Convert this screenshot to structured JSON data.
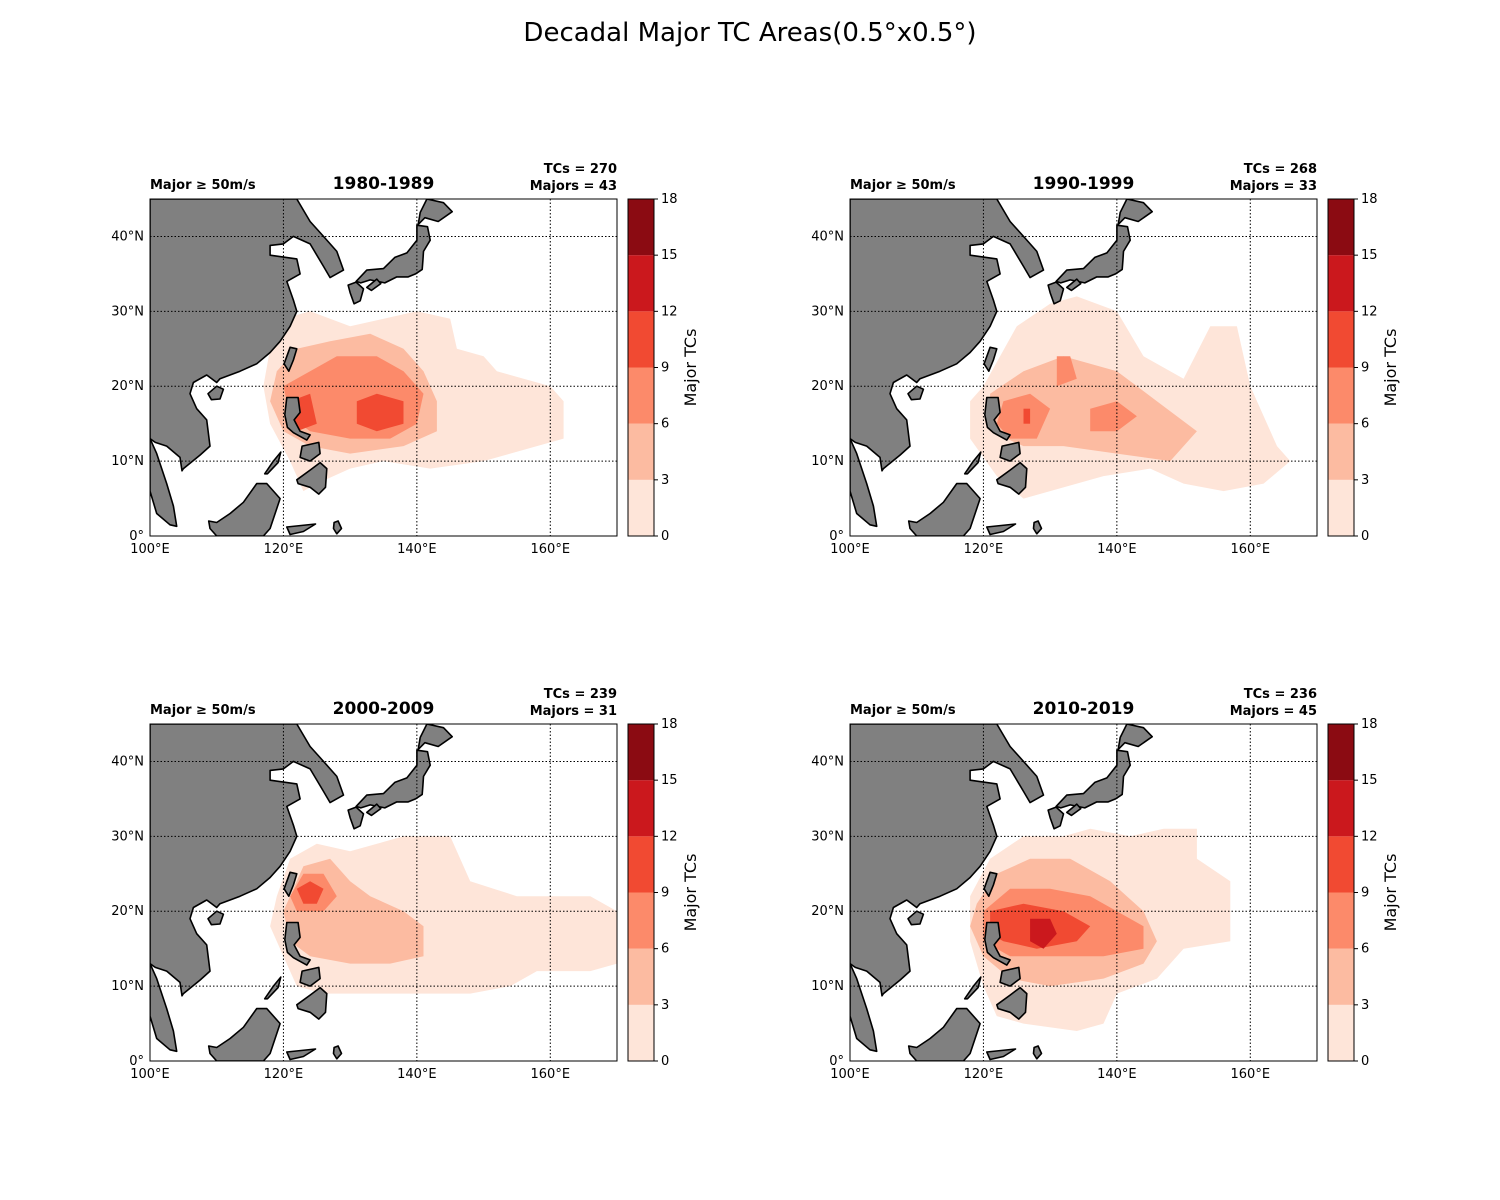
{
  "title": "Decadal Major TC Areas(0.5°x0.5°)",
  "colors": {
    "land": "#808080",
    "levels": [
      "#fee5d9",
      "#fcbba1",
      "#fc8a6a",
      "#f14a32",
      "#cb181d",
      "#8b0b12"
    ]
  },
  "chart_data": [
    {
      "type": "heatmap",
      "title": "1980-1989",
      "threshold_label": "Major ≥ 50m/s",
      "tcs_label": "TCs = 270",
      "majors_label": "Majors = 43",
      "xlim": [
        100,
        170
      ],
      "ylim": [
        0,
        45
      ],
      "xticks": [
        "100°E",
        "120°E",
        "140°E",
        "160°E"
      ],
      "yticks": [
        "0°",
        "10°N",
        "20°N",
        "30°N",
        "40°N"
      ],
      "colorbar": {
        "label": "Major  TCs",
        "ticks": [
          "0",
          "3",
          "6",
          "9",
          "12",
          "15",
          "18"
        ]
      },
      "regions": [
        {
          "level": 1,
          "pts": [
            [
              118,
              25
            ],
            [
              120,
              29
            ],
            [
              124,
              30
            ],
            [
              130,
              28
            ],
            [
              140,
              30
            ],
            [
              145,
              29
            ],
            [
              146,
              25
            ],
            [
              150,
              24
            ],
            [
              152,
              22
            ],
            [
              156,
              21
            ],
            [
              160,
              20
            ],
            [
              162,
              18
            ],
            [
              162,
              13
            ],
            [
              158,
              12
            ],
            [
              150,
              10
            ],
            [
              142,
              9
            ],
            [
              135,
              10
            ],
            [
              130,
              9
            ],
            [
              125,
              7
            ],
            [
              123,
              6
            ],
            [
              121,
              10
            ],
            [
              118,
              15
            ],
            [
              117,
              20
            ]
          ]
        },
        {
          "level": 2,
          "pts": [
            [
              119,
              22
            ],
            [
              122,
              25
            ],
            [
              127,
              26
            ],
            [
              133,
              27
            ],
            [
              138,
              25
            ],
            [
              141,
              22
            ],
            [
              143,
              18
            ],
            [
              143,
              14
            ],
            [
              138,
              12
            ],
            [
              130,
              11
            ],
            [
              124,
              12
            ],
            [
              120,
              14
            ],
            [
              118,
              18
            ]
          ]
        },
        {
          "level": 3,
          "pts": [
            [
              120,
              20
            ],
            [
              124,
              22
            ],
            [
              128,
              24
            ],
            [
              134,
              24
            ],
            [
              138,
              22
            ],
            [
              141,
              19
            ],
            [
              140,
              15
            ],
            [
              136,
              13
            ],
            [
              130,
              13
            ],
            [
              124,
              14
            ],
            [
              121,
              16
            ]
          ]
        },
        {
          "level": 4,
          "pts": [
            [
              121,
              18
            ],
            [
              124,
              19
            ],
            [
              125,
              15
            ],
            [
              122,
              14
            ]
          ]
        },
        {
          "level": 4,
          "pts": [
            [
              131,
              18
            ],
            [
              134,
              19
            ],
            [
              138,
              18
            ],
            [
              138,
              15
            ],
            [
              134,
              14
            ],
            [
              131,
              15
            ]
          ]
        }
      ]
    },
    {
      "type": "heatmap",
      "title": "1990-1999",
      "threshold_label": "Major ≥ 50m/s",
      "tcs_label": "TCs = 268",
      "majors_label": "Majors = 33",
      "xlim": [
        100,
        170
      ],
      "ylim": [
        0,
        45
      ],
      "xticks": [
        "100°E",
        "120°E",
        "140°E",
        "160°E"
      ],
      "yticks": [
        "0°",
        "10°N",
        "20°N",
        "30°N",
        "40°N"
      ],
      "colorbar": {
        "label": "Major  TCs",
        "ticks": [
          "0",
          "3",
          "6",
          "9",
          "12",
          "15",
          "18"
        ]
      },
      "regions": [
        {
          "level": 1,
          "pts": [
            [
              120,
              20
            ],
            [
              125,
              28
            ],
            [
              130,
              31
            ],
            [
              134,
              32
            ],
            [
              140,
              30
            ],
            [
              144,
              24
            ],
            [
              150,
              21
            ],
            [
              154,
              28
            ],
            [
              158,
              28
            ],
            [
              160,
              20
            ],
            [
              164,
              12
            ],
            [
              166,
              10
            ],
            [
              162,
              7
            ],
            [
              156,
              6
            ],
            [
              150,
              7
            ],
            [
              145,
              9
            ],
            [
              138,
              8
            ],
            [
              130,
              6
            ],
            [
              126,
              5
            ],
            [
              122,
              8
            ],
            [
              118,
              13
            ],
            [
              118,
              18
            ]
          ]
        },
        {
          "level": 2,
          "pts": [
            [
              121,
              19
            ],
            [
              126,
              22
            ],
            [
              132,
              24
            ],
            [
              140,
              22
            ],
            [
              146,
              18
            ],
            [
              152,
              14
            ],
            [
              148,
              10
            ],
            [
              140,
              11
            ],
            [
              132,
              12
            ],
            [
              126,
              12
            ],
            [
              121,
              14
            ]
          ]
        },
        {
          "level": 3,
          "pts": [
            [
              123,
              18
            ],
            [
              127,
              19
            ],
            [
              130,
              17
            ],
            [
              128,
              13
            ],
            [
              124,
              13
            ],
            [
              122,
              15
            ]
          ]
        },
        {
          "level": 3,
          "pts": [
            [
              131,
              24
            ],
            [
              133,
              24
            ],
            [
              134,
              21
            ],
            [
              131,
              20
            ]
          ]
        },
        {
          "level": 3,
          "pts": [
            [
              136,
              17
            ],
            [
              140,
              18
            ],
            [
              143,
              16
            ],
            [
              140,
              14
            ],
            [
              136,
              14
            ]
          ]
        },
        {
          "level": 4,
          "pts": [
            [
              126,
              17
            ],
            [
              127,
              17
            ],
            [
              127,
              15
            ],
            [
              126,
              15
            ]
          ]
        }
      ]
    },
    {
      "type": "heatmap",
      "title": "2000-2009",
      "threshold_label": "Major ≥ 50m/s",
      "tcs_label": "TCs = 239",
      "majors_label": "Majors = 31",
      "xlim": [
        100,
        170
      ],
      "ylim": [
        0,
        45
      ],
      "xticks": [
        "100°E",
        "120°E",
        "140°E",
        "160°E"
      ],
      "yticks": [
        "0°",
        "10°N",
        "20°N",
        "30°N",
        "40°N"
      ],
      "colorbar": {
        "label": "Major  TCs",
        "ticks": [
          "0",
          "3",
          "6",
          "9",
          "12",
          "15",
          "18"
        ]
      },
      "regions": [
        {
          "level": 1,
          "pts": [
            [
              119,
              22
            ],
            [
              121,
              27
            ],
            [
              125,
              29
            ],
            [
              130,
              28
            ],
            [
              138,
              30
            ],
            [
              145,
              30
            ],
            [
              148,
              24
            ],
            [
              155,
              22
            ],
            [
              160,
              22
            ],
            [
              166,
              22
            ],
            [
              170,
              20
            ],
            [
              170,
              13
            ],
            [
              166,
              12
            ],
            [
              158,
              12
            ],
            [
              154,
              10
            ],
            [
              148,
              9
            ],
            [
              140,
              9
            ],
            [
              132,
              9
            ],
            [
              126,
              9
            ],
            [
              122,
              10
            ],
            [
              120,
              14
            ],
            [
              118,
              18
            ]
          ]
        },
        {
          "level": 2,
          "pts": [
            [
              120,
              20
            ],
            [
              123,
              26
            ],
            [
              127,
              27
            ],
            [
              130,
              24
            ],
            [
              133,
              22
            ],
            [
              138,
              20
            ],
            [
              141,
              18
            ],
            [
              141,
              14
            ],
            [
              136,
              13
            ],
            [
              130,
              13
            ],
            [
              124,
              14
            ],
            [
              121,
              16
            ]
          ]
        },
        {
          "level": 3,
          "pts": [
            [
              121,
              22
            ],
            [
              123,
              25
            ],
            [
              126,
              25
            ],
            [
              128,
              22
            ],
            [
              126,
              20
            ],
            [
              122,
              20
            ]
          ]
        },
        {
          "level": 4,
          "pts": [
            [
              122,
              23
            ],
            [
              124,
              24
            ],
            [
              126,
              23
            ],
            [
              125,
              21
            ],
            [
              123,
              21
            ]
          ]
        }
      ]
    },
    {
      "type": "heatmap",
      "title": "2010-2019",
      "threshold_label": "Major ≥ 50m/s",
      "tcs_label": "TCs = 236",
      "majors_label": "Majors = 45",
      "xlim": [
        100,
        170
      ],
      "ylim": [
        0,
        45
      ],
      "xticks": [
        "100°E",
        "120°E",
        "140°E",
        "160°E"
      ],
      "yticks": [
        "0°",
        "10°N",
        "20°N",
        "30°N",
        "40°N"
      ],
      "colorbar": {
        "label": "Major  TCs",
        "ticks": [
          "0",
          "3",
          "6",
          "9",
          "12",
          "15",
          "18"
        ]
      },
      "regions": [
        {
          "level": 1,
          "pts": [
            [
              118,
              22
            ],
            [
              121,
              27
            ],
            [
              126,
              30
            ],
            [
              132,
              30
            ],
            [
              136,
              31
            ],
            [
              142,
              30
            ],
            [
              147,
              31
            ],
            [
              152,
              31
            ],
            [
              152,
              27
            ],
            [
              157,
              24
            ],
            [
              157,
              16
            ],
            [
              150,
              15
            ],
            [
              146,
              11
            ],
            [
              140,
              9
            ],
            [
              138,
              5
            ],
            [
              134,
              4
            ],
            [
              126,
              5
            ],
            [
              122,
              6
            ],
            [
              120,
              10
            ],
            [
              118,
              16
            ]
          ]
        },
        {
          "level": 2,
          "pts": [
            [
              119,
              21
            ],
            [
              122,
              25
            ],
            [
              127,
              27
            ],
            [
              133,
              27
            ],
            [
              139,
              24
            ],
            [
              144,
              20
            ],
            [
              146,
              16
            ],
            [
              144,
              13
            ],
            [
              138,
              11
            ],
            [
              130,
              10
            ],
            [
              124,
              11
            ],
            [
              120,
              14
            ],
            [
              118,
              18
            ]
          ]
        },
        {
          "level": 3,
          "pts": [
            [
              120,
              20
            ],
            [
              124,
              23
            ],
            [
              130,
              23
            ],
            [
              136,
              22
            ],
            [
              140,
              20
            ],
            [
              144,
              18
            ],
            [
              144,
              15
            ],
            [
              138,
              14
            ],
            [
              130,
              14
            ],
            [
              124,
              14
            ],
            [
              120,
              16
            ]
          ]
        },
        {
          "level": 4,
          "pts": [
            [
              121,
              20
            ],
            [
              126,
              21
            ],
            [
              132,
              20
            ],
            [
              136,
              18
            ],
            [
              134,
              16
            ],
            [
              128,
              15
            ],
            [
              123,
              16
            ],
            [
              121,
              17
            ]
          ]
        },
        {
          "level": 5,
          "pts": [
            [
              127,
              19
            ],
            [
              130,
              19
            ],
            [
              131,
              17
            ],
            [
              129,
              15
            ],
            [
              127,
              16
            ]
          ]
        }
      ]
    }
  ]
}
